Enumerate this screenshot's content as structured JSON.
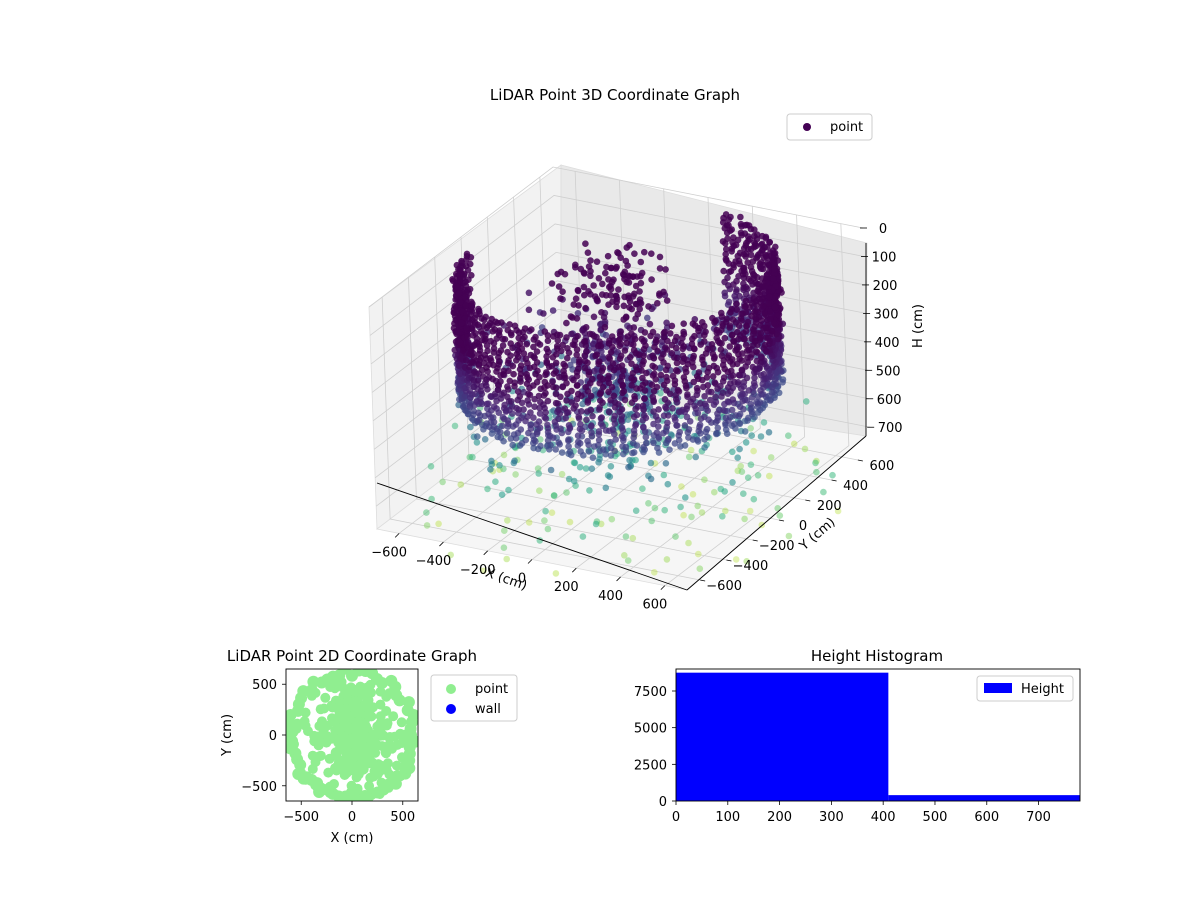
{
  "chart_data": [
    {
      "type": "scatter",
      "title": "LiDAR Point 3D Coordinate Graph",
      "xlabel": "X (cm)",
      "ylabel": "Y (cm)",
      "zlabel": "H (cm)",
      "xlim": [
        -700,
        700
      ],
      "ylim": [
        -700,
        700
      ],
      "zlim": [
        780,
        0
      ],
      "x_ticks": [
        "−600",
        "−400",
        "−200",
        "0",
        "200",
        "400",
        "600"
      ],
      "y_ticks": [
        "−600",
        "−400",
        "−200",
        "0",
        "200",
        "400",
        "600"
      ],
      "z_ticks": [
        "0",
        "100",
        "200",
        "300",
        "400",
        "500",
        "600",
        "700"
      ],
      "legend": {
        "labels": [
          "point"
        ],
        "location": "upper right"
      },
      "colormap": "viridis (low H = dark purple, high H = light green)",
      "colors": {
        "dark": "#440154",
        "mid": "#31688e",
        "light": "#b5de2b"
      },
      "series": [
        {
          "name": "point",
          "description": "ring of wall points (radius ~620) from H 0 to ~400, floor points at H ~700+"
        }
      ]
    },
    {
      "type": "scatter",
      "title": "LiDAR Point 2D Coordinate Graph",
      "xlabel": "X (cm)",
      "ylabel": "Y (cm)",
      "xlim": [
        -650,
        650
      ],
      "ylim": [
        -650,
        650
      ],
      "x_ticks": [
        "−500",
        "0",
        "500"
      ],
      "y_ticks": [
        "−500",
        "0",
        "500"
      ],
      "legend": {
        "labels": [
          "point",
          "wall"
        ],
        "location": "outside right"
      },
      "colors": {
        "point": "#90ee90",
        "wall": "#0000ff"
      },
      "series": [
        {
          "name": "point",
          "color": "#90ee90"
        },
        {
          "name": "wall",
          "color": "#0000ff",
          "values": []
        }
      ]
    },
    {
      "type": "bar",
      "title": "Height Histogram",
      "xlabel": "",
      "ylabel": "",
      "xlim": [
        0,
        780
      ],
      "ylim": [
        0,
        9000
      ],
      "x_ticks": [
        "0",
        "100",
        "200",
        "300",
        "400",
        "500",
        "600",
        "700"
      ],
      "y_ticks": [
        "0",
        "2500",
        "5000",
        "7500"
      ],
      "legend": {
        "labels": [
          "Height"
        ],
        "location": "upper right"
      },
      "color": "#0000ff",
      "bins": [
        {
          "from": 0,
          "to": 410,
          "count": 8750
        },
        {
          "from": 410,
          "to": 780,
          "count": 400
        }
      ]
    }
  ]
}
